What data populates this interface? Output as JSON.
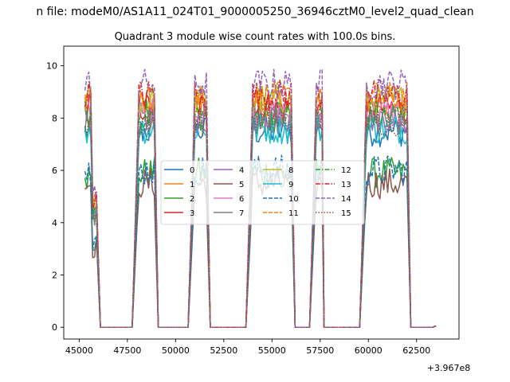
{
  "figure": {
    "suptitle": "n file: modeM0/AS1A11_024T01_9000005250_36946cztM0_level2_quad_clean",
    "offset_label": "+3.967e8"
  },
  "chart_data": {
    "type": "line",
    "title": "Quadrant 3 module wise count rates with 100.0s bins.",
    "xlabel": "",
    "ylabel": "",
    "xlim": [
      44200,
      64700
    ],
    "ylim": [
      -0.45,
      10.75
    ],
    "x_offset": 396700000,
    "xticks": [
      45000,
      47500,
      50000,
      52500,
      55000,
      57500,
      60000,
      62500
    ],
    "xtick_labels": [
      "45000",
      "47500",
      "50000",
      "52500",
      "55000",
      "57500",
      "60000",
      "62500"
    ],
    "yticks": [
      0,
      2,
      4,
      6,
      8,
      10
    ],
    "ytick_labels": [
      "0",
      "2",
      "4",
      "6",
      "8",
      "10"
    ],
    "grid": false,
    "legend_position": "center",
    "legend_ncol": 4,
    "segments": [
      {
        "start": 45300,
        "end": 45900,
        "fall_end": 46100
      },
      {
        "start": 48000,
        "end": 48900,
        "fall_end": 49100
      },
      {
        "start": 50900,
        "end": 51600,
        "fall_end": 51800
      },
      {
        "start": 53900,
        "end": 56000,
        "fall_end": 56200
      },
      {
        "start": 57200,
        "end": 57600,
        "fall_end": 57700
      },
      {
        "start": 59800,
        "end": 62000,
        "fall_end": 62200
      }
    ],
    "series": [
      {
        "name": "0",
        "color": "#1f77b4",
        "dash": "solid",
        "level": 7.5
      },
      {
        "name": "1",
        "color": "#ff7f0e",
        "dash": "solid",
        "level": 8.6
      },
      {
        "name": "2",
        "color": "#2ca02c",
        "dash": "solid",
        "level": 5.9
      },
      {
        "name": "3",
        "color": "#d62728",
        "dash": "solid",
        "level": 8.4
      },
      {
        "name": "4",
        "color": "#9467bd",
        "dash": "solid",
        "level": 8.0
      },
      {
        "name": "5",
        "color": "#8c564b",
        "dash": "solid",
        "level": 5.5
      },
      {
        "name": "6",
        "color": "#e377c2",
        "dash": "solid",
        "level": 8.2
      },
      {
        "name": "7",
        "color": "#7f7f7f",
        "dash": "solid",
        "level": 7.8
      },
      {
        "name": "8",
        "color": "#bcbd22",
        "dash": "solid",
        "level": 8.7
      },
      {
        "name": "9",
        "color": "#17becf",
        "dash": "solid",
        "level": 7.6
      },
      {
        "name": "10",
        "color": "#1f77b4",
        "dash": "dashed",
        "level": 6.0
      },
      {
        "name": "11",
        "color": "#ff7f0e",
        "dash": "dashed",
        "level": 8.8
      },
      {
        "name": "12",
        "color": "#2ca02c",
        "dash": "dashdot",
        "level": 8.1
      },
      {
        "name": "13",
        "color": "#d62728",
        "dash": "dashdot",
        "level": 8.9
      },
      {
        "name": "14",
        "color": "#9467bd",
        "dash": "dashed",
        "level": 9.3
      },
      {
        "name": "15",
        "color": "#8c564b",
        "dash": "dotted",
        "level": 7.9
      }
    ],
    "end_value": 0.05
  }
}
